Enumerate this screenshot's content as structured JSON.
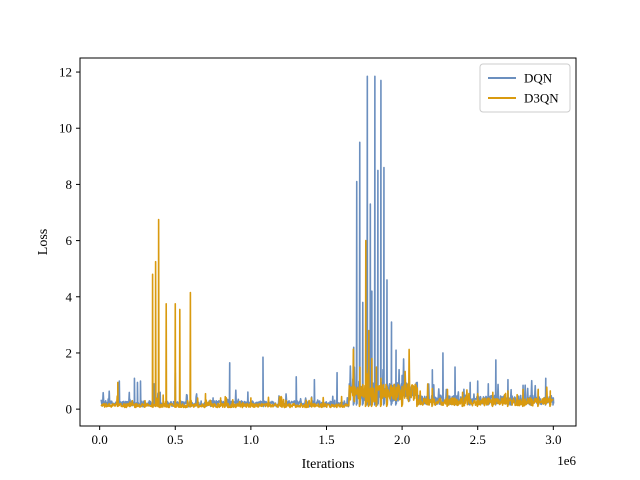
{
  "chart_data": {
    "type": "line",
    "xlabel": "Iterations",
    "ylabel": "Loss",
    "x_offset_label": "1e6",
    "xlim": [
      -0.13,
      3.15
    ],
    "ylim": [
      -0.6,
      12.5
    ],
    "x_ticks": [
      0.0,
      0.5,
      1.0,
      1.5,
      2.0,
      2.5,
      3.0
    ],
    "x_tick_labels": [
      "0.0",
      "0.5",
      "1.0",
      "1.5",
      "2.0",
      "2.5",
      "3.0"
    ],
    "y_ticks": [
      0,
      2,
      4,
      6,
      8,
      10,
      12
    ],
    "y_tick_labels": [
      "0",
      "2",
      "4",
      "6",
      "8",
      "10",
      "12"
    ],
    "grid": false,
    "legend_position": "top-right",
    "x_scale_note": "x values in units of 1e6 iterations",
    "series": [
      {
        "name": "DQN",
        "color": "#6b8fbf",
        "base_level": 0.15,
        "spikes": [
          [
            0.13,
            1.0
          ],
          [
            0.2,
            0.35
          ],
          [
            0.23,
            1.1
          ],
          [
            0.25,
            0.95
          ],
          [
            0.27,
            1.0
          ],
          [
            0.36,
            0.9
          ],
          [
            0.4,
            0.6
          ],
          [
            0.5,
            1.3
          ],
          [
            0.6,
            0.35
          ],
          [
            0.75,
            0.4
          ],
          [
            0.86,
            1.65
          ],
          [
            0.98,
            0.55
          ],
          [
            1.08,
            1.85
          ],
          [
            1.3,
            1.15
          ],
          [
            1.42,
            1.05
          ],
          [
            1.57,
            1.3
          ],
          [
            1.68,
            2.2
          ],
          [
            1.7,
            8.1
          ],
          [
            1.72,
            9.5
          ],
          [
            1.74,
            3.8
          ],
          [
            1.77,
            11.85
          ],
          [
            1.79,
            7.3
          ],
          [
            1.8,
            4.2
          ],
          [
            1.82,
            11.85
          ],
          [
            1.84,
            8.5
          ],
          [
            1.86,
            11.7
          ],
          [
            1.88,
            8.6
          ],
          [
            1.9,
            4.6
          ],
          [
            1.93,
            3.1
          ],
          [
            1.96,
            2.1
          ],
          [
            2.0,
            1.2
          ],
          [
            2.1,
            0.95
          ],
          [
            2.2,
            1.4
          ],
          [
            2.27,
            2.0
          ],
          [
            2.35,
            1.5
          ],
          [
            2.45,
            0.95
          ],
          [
            2.5,
            1.0
          ],
          [
            2.57,
            0.9
          ],
          [
            2.62,
            1.75
          ],
          [
            2.7,
            1.05
          ],
          [
            2.8,
            0.85
          ],
          [
            2.9,
            0.7
          ],
          [
            2.95,
            1.1
          ],
          [
            3.0,
            0.4
          ]
        ]
      },
      {
        "name": "D3QN",
        "color": "#d99a0f",
        "base_level": 0.1,
        "spikes": [
          [
            0.12,
            0.95
          ],
          [
            0.2,
            0.25
          ],
          [
            0.3,
            0.3
          ],
          [
            0.35,
            4.8
          ],
          [
            0.37,
            5.25
          ],
          [
            0.39,
            6.75
          ],
          [
            0.42,
            0.5
          ],
          [
            0.44,
            3.75
          ],
          [
            0.5,
            3.75
          ],
          [
            0.53,
            3.55
          ],
          [
            0.6,
            4.15
          ],
          [
            0.7,
            0.55
          ],
          [
            0.8,
            0.4
          ],
          [
            1.0,
            0.4
          ],
          [
            1.2,
            0.45
          ],
          [
            1.4,
            0.4
          ],
          [
            1.6,
            0.45
          ],
          [
            1.72,
            0.8
          ],
          [
            1.76,
            6.0
          ],
          [
            1.78,
            2.8
          ],
          [
            1.8,
            1.8
          ],
          [
            1.83,
            1.5
          ],
          [
            1.86,
            1.1
          ],
          [
            1.9,
            0.8
          ],
          [
            2.0,
            0.8
          ],
          [
            2.1,
            0.75
          ],
          [
            2.2,
            0.65
          ],
          [
            2.3,
            0.7
          ],
          [
            2.4,
            0.6
          ],
          [
            2.5,
            0.55
          ],
          [
            2.6,
            0.6
          ],
          [
            2.7,
            0.65
          ],
          [
            2.8,
            0.7
          ],
          [
            2.9,
            0.7
          ],
          [
            2.98,
            0.65
          ]
        ]
      }
    ]
  }
}
